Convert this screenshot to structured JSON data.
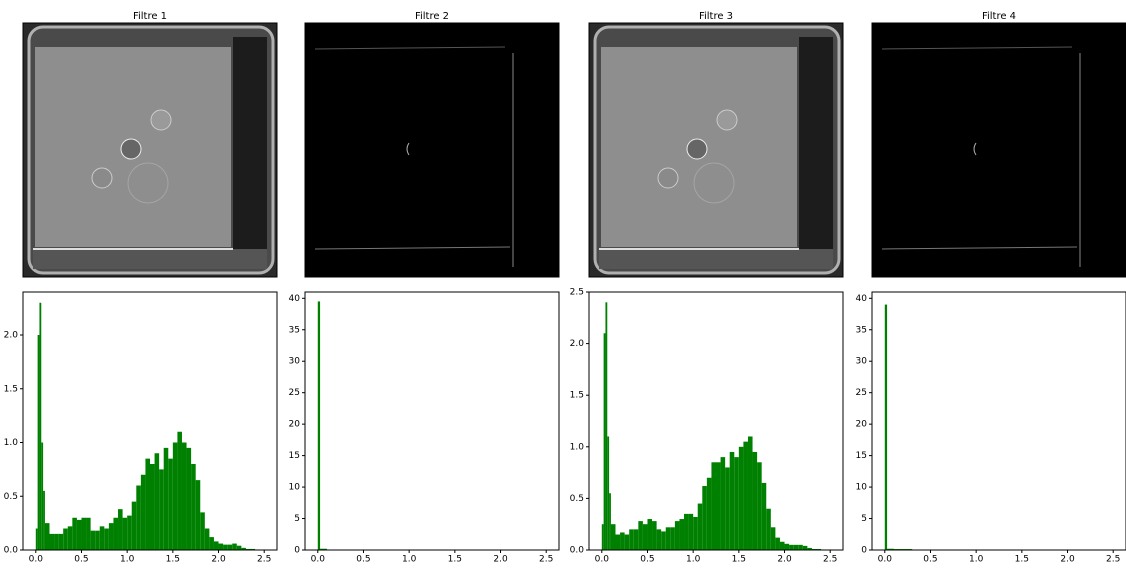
{
  "chart_data": [
    {
      "type": "histogram",
      "title": "Filtre 1",
      "color": "#008000",
      "bins": [
        0,
        0.02,
        0.04,
        0.06,
        0.08,
        0.1,
        0.15,
        0.2,
        0.25,
        0.3,
        0.35,
        0.4,
        0.45,
        0.5,
        0.55,
        0.6,
        0.65,
        0.7,
        0.75,
        0.8,
        0.85,
        0.9,
        0.95,
        1.0,
        1.05,
        1.1,
        1.15,
        1.2,
        1.25,
        1.3,
        1.35,
        1.4,
        1.45,
        1.5,
        1.55,
        1.6,
        1.65,
        1.7,
        1.75,
        1.8,
        1.85,
        1.9,
        1.95,
        2.0,
        2.05,
        2.1,
        2.15,
        2.2,
        2.25,
        2.3,
        2.35,
        2.4,
        2.45,
        2.5
      ],
      "values": [
        0.2,
        2.0,
        2.3,
        1.0,
        0.55,
        0.25,
        0.15,
        0.15,
        0.15,
        0.2,
        0.22,
        0.3,
        0.28,
        0.3,
        0.3,
        0.18,
        0.18,
        0.22,
        0.2,
        0.25,
        0.3,
        0.38,
        0.3,
        0.32,
        0.45,
        0.6,
        0.7,
        0.85,
        0.8,
        0.9,
        0.75,
        0.95,
        0.85,
        1.0,
        1.1,
        1.0,
        0.95,
        0.8,
        0.65,
        0.35,
        0.2,
        0.12,
        0.08,
        0.06,
        0.05,
        0.05,
        0.06,
        0.04,
        0.02,
        0.01,
        0.01,
        0.005,
        0
      ],
      "xlim": [
        -0.14,
        2.64
      ],
      "ylim": [
        0,
        2.4
      ],
      "xticks": [
        {
          "value": 0,
          "label": "0.0"
        },
        {
          "value": 0.5,
          "label": "0.5"
        },
        {
          "value": 1,
          "label": "1.0"
        },
        {
          "value": 1.5,
          "label": "1.5"
        },
        {
          "value": 2,
          "label": "2.0"
        },
        {
          "value": 2.5,
          "label": "2.5"
        }
      ],
      "yticks": [
        {
          "value": 0,
          "label": "0.0"
        },
        {
          "value": 0.5,
          "label": "0.5"
        },
        {
          "value": 1,
          "label": "1.0"
        },
        {
          "value": 1.5,
          "label": "1.5"
        },
        {
          "value": 2,
          "label": "2.0"
        }
      ]
    },
    {
      "type": "histogram",
      "title": "Filtre 2",
      "color": "#008000",
      "bins": [
        0,
        0.025,
        0.1,
        0.3,
        2.5
      ],
      "values": [
        39.5,
        0.2,
        0.05,
        0
      ],
      "xlim": [
        -0.14,
        2.64
      ],
      "ylim": [
        0,
        41
      ],
      "xticks": [
        {
          "value": 0,
          "label": "0.0"
        },
        {
          "value": 0.5,
          "label": "0.5"
        },
        {
          "value": 1,
          "label": "1.0"
        },
        {
          "value": 1.5,
          "label": "1.5"
        },
        {
          "value": 2,
          "label": "2.0"
        },
        {
          "value": 2.5,
          "label": "2.5"
        }
      ],
      "yticks": [
        0,
        5,
        10,
        15,
        20,
        25,
        30,
        35,
        40
      ]
    },
    {
      "type": "histogram",
      "title": "Filtre 3",
      "color": "#008000",
      "bins": [
        0,
        0.02,
        0.04,
        0.06,
        0.08,
        0.1,
        0.15,
        0.2,
        0.25,
        0.3,
        0.35,
        0.4,
        0.45,
        0.5,
        0.55,
        0.6,
        0.65,
        0.7,
        0.75,
        0.8,
        0.85,
        0.9,
        0.95,
        1.0,
        1.05,
        1.1,
        1.15,
        1.2,
        1.25,
        1.3,
        1.35,
        1.4,
        1.45,
        1.5,
        1.55,
        1.6,
        1.65,
        1.7,
        1.75,
        1.8,
        1.85,
        1.9,
        1.95,
        2.0,
        2.05,
        2.1,
        2.15,
        2.2,
        2.25,
        2.3,
        2.35,
        2.4,
        2.45,
        2.5
      ],
      "values": [
        0.25,
        2.1,
        2.4,
        1.1,
        0.55,
        0.25,
        0.15,
        0.17,
        0.15,
        0.2,
        0.2,
        0.28,
        0.25,
        0.3,
        0.28,
        0.2,
        0.18,
        0.22,
        0.22,
        0.28,
        0.3,
        0.35,
        0.35,
        0.32,
        0.45,
        0.62,
        0.7,
        0.85,
        0.85,
        0.9,
        0.8,
        0.95,
        0.9,
        1.0,
        1.05,
        1.1,
        0.95,
        0.85,
        0.65,
        0.4,
        0.22,
        0.12,
        0.08,
        0.06,
        0.05,
        0.05,
        0.05,
        0.04,
        0.02,
        0.01,
        0.01,
        0.005,
        0
      ],
      "xlim": [
        -0.14,
        2.64
      ],
      "ylim": [
        0,
        2.5
      ],
      "xticks": [
        {
          "value": 0,
          "label": "0.0"
        },
        {
          "value": 0.5,
          "label": "0.5"
        },
        {
          "value": 1,
          "label": "1.0"
        },
        {
          "value": 1.5,
          "label": "1.5"
        },
        {
          "value": 2,
          "label": "2.0"
        },
        {
          "value": 2.5,
          "label": "2.5"
        }
      ],
      "yticks": [
        {
          "value": 0,
          "label": "0.0"
        },
        {
          "value": 0.5,
          "label": "0.5"
        },
        {
          "value": 1,
          "label": "1.0"
        },
        {
          "value": 1.5,
          "label": "1.5"
        },
        {
          "value": 2,
          "label": "2.0"
        },
        {
          "value": 2.5,
          "label": "2.5"
        }
      ]
    },
    {
      "type": "histogram",
      "title": "Filtre 4",
      "color": "#008000",
      "bins": [
        0,
        0.025,
        0.1,
        0.3,
        2.5
      ],
      "values": [
        39,
        0.2,
        0.15,
        0
      ],
      "xlim": [
        -0.14,
        2.64
      ],
      "ylim": [
        0,
        41
      ],
      "xticks": [
        {
          "value": 0,
          "label": "0.0"
        },
        {
          "value": 0.5,
          "label": "0.5"
        },
        {
          "value": 1,
          "label": "1.0"
        },
        {
          "value": 1.5,
          "label": "1.5"
        },
        {
          "value": 2,
          "label": "2.0"
        },
        {
          "value": 2.5,
          "label": "2.5"
        }
      ],
      "yticks": [
        0,
        5,
        10,
        15,
        20,
        25,
        30,
        35,
        40
      ]
    }
  ]
}
